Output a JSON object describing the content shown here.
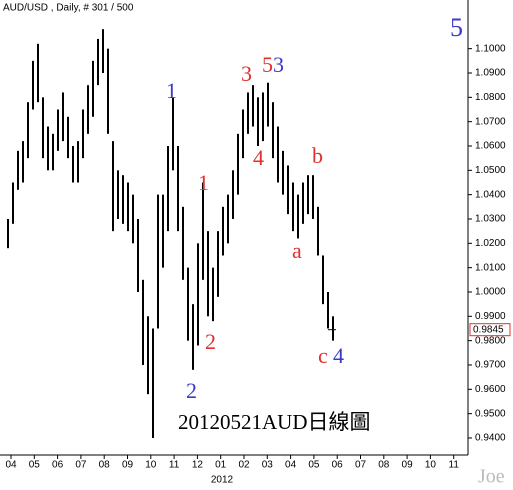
{
  "chart_data": {
    "type": "range-bar",
    "title": "AUD/USD , Daily, # 301 / 500",
    "caption": "20120521AUD日線圖",
    "watermark": "Joe",
    "year_label": "2012",
    "last_price": {
      "value": 0.9845,
      "label": "0.9845"
    },
    "categories": [
      "04",
      "05",
      "06",
      "07",
      "08",
      "09",
      "10",
      "11",
      "12",
      "01",
      "02",
      "03",
      "04",
      "05",
      "06",
      "07",
      "08",
      "09",
      "10",
      "11"
    ],
    "color": "#000000",
    "series": [
      {
        "name": "AUD/USD",
        "low": [
          1.018,
          1.028,
          1.042,
          1.045,
          1.055,
          1.075,
          1.078,
          1.055,
          1.05,
          1.05,
          1.058,
          1.062,
          1.055,
          1.045,
          1.045,
          1.055,
          1.065,
          1.072,
          1.085,
          1.09,
          1.065,
          1.025,
          1.03,
          1.028,
          1.025,
          1.02,
          1.0,
          0.97,
          0.958,
          0.94,
          0.985,
          1.01,
          1.025,
          1.05,
          1.025,
          1.005,
          0.98,
          0.968,
          0.978,
          1.005,
          0.99,
          0.988,
          0.998,
          1.015,
          1.02,
          1.03,
          1.04,
          1.055,
          1.065,
          1.068,
          1.06,
          1.062,
          1.068,
          1.055,
          1.045,
          1.04,
          1.032,
          1.025,
          1.022,
          1.028,
          1.032,
          1.03,
          1.015,
          0.995,
          0.985,
          0.98
        ],
        "high": [
          1.03,
          1.045,
          1.058,
          1.062,
          1.078,
          1.095,
          1.102,
          1.08,
          1.068,
          1.065,
          1.075,
          1.082,
          1.072,
          1.06,
          1.062,
          1.075,
          1.085,
          1.095,
          1.104,
          1.108,
          1.1,
          1.062,
          1.05,
          1.048,
          1.045,
          1.04,
          1.03,
          1.005,
          0.99,
          0.985,
          1.04,
          1.04,
          1.06,
          1.08,
          1.06,
          1.035,
          1.01,
          0.995,
          1.02,
          1.045,
          1.025,
          1.01,
          1.025,
          1.035,
          1.04,
          1.05,
          1.065,
          1.075,
          1.082,
          1.085,
          1.08,
          1.082,
          1.086,
          1.078,
          1.068,
          1.058,
          1.052,
          1.045,
          1.04,
          1.045,
          1.048,
          1.048,
          1.035,
          1.015,
          1.0,
          0.99
        ]
      }
    ],
    "ylim": [
      0.933,
      1.12
    ],
    "yticks": [
      {
        "value": 0.94,
        "label": "0.9400"
      },
      {
        "value": 0.95,
        "label": "0.9500"
      },
      {
        "value": 0.96,
        "label": "0.9600"
      },
      {
        "value": 0.97,
        "label": "0.9700"
      },
      {
        "value": 0.98,
        "label": "0.9800"
      },
      {
        "value": 0.99,
        "label": "0.9900"
      },
      {
        "value": 1.0,
        "label": "1.0000"
      },
      {
        "value": 1.01,
        "label": "1.0100"
      },
      {
        "value": 1.02,
        "label": "1.0200"
      },
      {
        "value": 1.03,
        "label": "1.0300"
      },
      {
        "value": 1.04,
        "label": "1.0400"
      },
      {
        "value": 1.05,
        "label": "1.0500"
      },
      {
        "value": 1.06,
        "label": "1.0600"
      },
      {
        "value": 1.07,
        "label": "1.0700"
      },
      {
        "value": 1.08,
        "label": "1.0800"
      },
      {
        "value": 1.09,
        "label": "1.0900"
      },
      {
        "value": 1.1,
        "label": "1.1000"
      }
    ],
    "annotations": [
      {
        "text": "5",
        "color": "#3a3acc"
      },
      {
        "text": "1",
        "color": "#3a3acc"
      },
      {
        "text": "3",
        "color": "#e03030"
      },
      {
        "text": "5",
        "color": "#e03030"
      },
      {
        "text": "3",
        "color": "#3a3acc"
      },
      {
        "text": "4",
        "color": "#e03030"
      },
      {
        "text": "b",
        "color": "#e03030"
      },
      {
        "text": "1",
        "color": "#e03030"
      },
      {
        "text": "a",
        "color": "#e03030"
      },
      {
        "text": "2",
        "color": "#e03030"
      },
      {
        "text": "2",
        "color": "#3a3acc"
      },
      {
        "text": "c",
        "color": "#e03030"
      },
      {
        "text": "4",
        "color": "#3a3acc"
      }
    ]
  }
}
